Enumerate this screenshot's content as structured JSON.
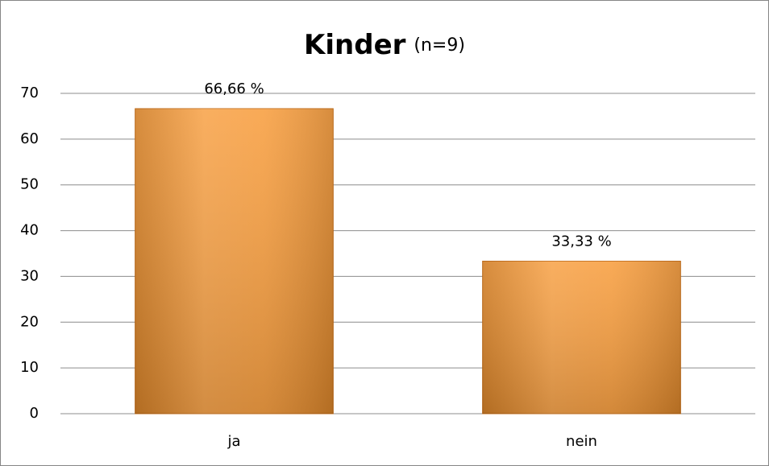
{
  "chart_data": {
    "type": "bar",
    "title": "Kinder",
    "subtitle": "(n=9)",
    "categories": [
      "ja",
      "nein"
    ],
    "values": [
      66.66,
      33.33
    ],
    "value_labels": [
      "66,66 %",
      "33,33 %"
    ],
    "color": "#f7962f",
    "ylim": [
      0,
      70
    ],
    "yticks": [
      0,
      10,
      20,
      30,
      40,
      50,
      60,
      70
    ],
    "grid": true
  }
}
